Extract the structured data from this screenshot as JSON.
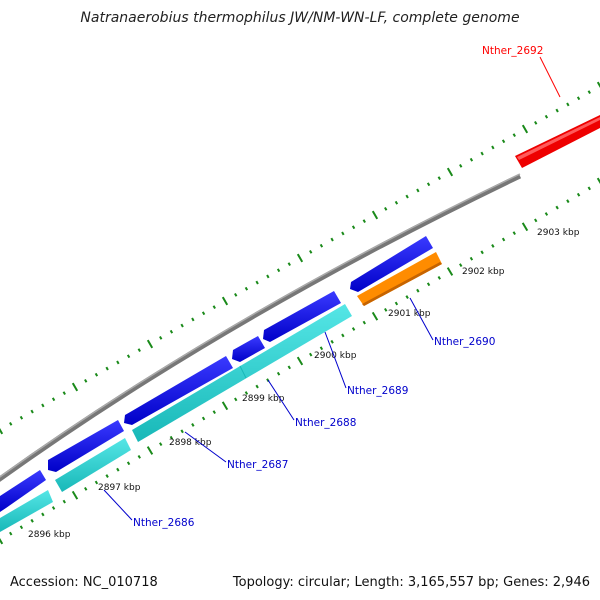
{
  "title": "Natranaerobius thermophilus JW/NM-WN-LF, complete genome",
  "footer": {
    "accession": "Accession: NC_010718",
    "summary": "Topology: circular; Length: 3,165,557 bp; Genes: 2,946"
  },
  "kbp_ticks": [
    "2896 kbp",
    "2897 kbp",
    "2898 kbp",
    "2899 kbp",
    "2900 kbp",
    "2901 kbp",
    "2902 kbp",
    "2903 kbp"
  ],
  "genes": [
    {
      "label": "Nther_2686",
      "color": "#0000cc",
      "strand": "reverse"
    },
    {
      "label": "Nther_2687",
      "color": "#0000cc",
      "strand": "reverse"
    },
    {
      "label": "Nther_2688",
      "color": "#0000cc",
      "strand": "reverse"
    },
    {
      "label": "Nther_2689",
      "color": "#0000cc",
      "strand": "reverse"
    },
    {
      "label": "Nther_2690",
      "color": "#0000cc",
      "strand": "reverse"
    },
    {
      "label": "Nther_2692",
      "color": "#ff0000",
      "strand": "forward"
    }
  ],
  "colors": {
    "forward_cds": "#0000ee",
    "reverse_cds": "#22cccc",
    "orange_feature": "#ff8c00",
    "red_feature": "#ee0000",
    "backbone": "#888888",
    "tick_marks": "#1a8a1a"
  }
}
